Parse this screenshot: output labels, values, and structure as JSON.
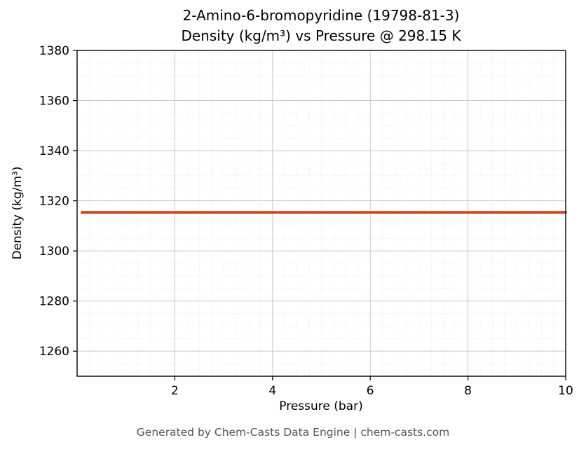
{
  "title": {
    "line1": "2-Amino-6-bromopyridine (19798-81-3)",
    "line2": "Density (kg/m³) vs Pressure @ 298.15 K"
  },
  "footer": "Generated by Chem-Casts Data Engine | chem-casts.com",
  "chart_data": {
    "type": "line",
    "title": "2-Amino-6-bromopyridine (19798-81-3)\nDensity (kg/m³) vs Pressure @ 298.15 K",
    "xlabel": "Pressure (bar)",
    "ylabel": "Density (kg/m³)",
    "xlim": [
      0,
      10
    ],
    "ylim": [
      1250,
      1380
    ],
    "x_ticks": [
      2,
      4,
      6,
      8,
      10
    ],
    "y_ticks": [
      1260,
      1280,
      1300,
      1320,
      1340,
      1360,
      1380
    ],
    "x_minor_step": 0.25,
    "y_minor_step": 5,
    "grid": true,
    "legend": false,
    "series": [
      {
        "name": "Density",
        "color": "#d0491f",
        "x": [
          0.1,
          2,
          4,
          6,
          8,
          10
        ],
        "y": [
          1315.4,
          1315.4,
          1315.4,
          1315.4,
          1315.4,
          1315.4
        ]
      }
    ]
  }
}
